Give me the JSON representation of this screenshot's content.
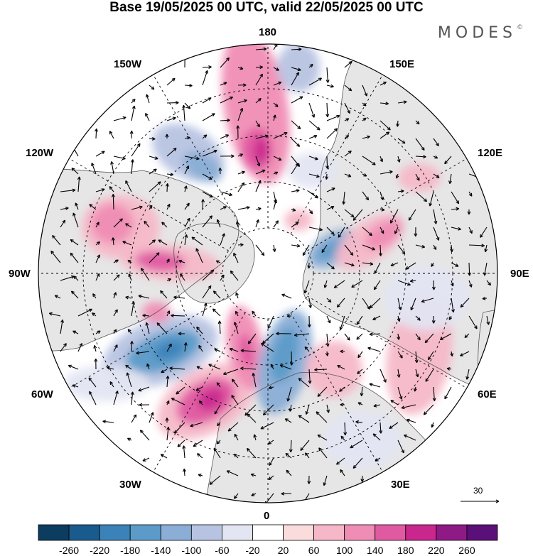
{
  "header": {
    "title": "Base 19/05/2025 00 UTC, valid 22/05/2025 00 UTC",
    "brand": "MODES",
    "brand_mark": "©"
  },
  "map": {
    "projection": "north-polar-stereographic",
    "longitude_labels": {
      "top": "180",
      "upper_left": "150W",
      "upper_right": "150E",
      "mid_upper_left": "120W",
      "mid_upper_right": "120E",
      "left": "90W",
      "right": "90E",
      "mid_lower_left": "60W",
      "mid_lower_right": "60E",
      "lower_left": "30W",
      "lower_right": "30E",
      "bottom": "0"
    },
    "colors": {
      "land_fill": "#e6e6e6",
      "ocean_fill": "#ffffff",
      "coastline": "#555555",
      "graticule": "#000000",
      "vector_color": "#000000"
    },
    "reference_vector": "30"
  },
  "colorbar": {
    "colors": [
      "#0c3c5f",
      "#1a5b8e",
      "#3b82b8",
      "#5c9bc9",
      "#8aaed6",
      "#b7c3e1",
      "#e3e5f2",
      "#ffffff",
      "#fbdcdc",
      "#f6b8c8",
      "#f08db4",
      "#e05aa2",
      "#c9268e",
      "#8e1a86",
      "#5b0f78"
    ],
    "ticks": [
      "-260",
      "-220",
      "-180",
      "-140",
      "-100",
      "-60",
      "-20",
      "20",
      "60",
      "100",
      "140",
      "180",
      "220",
      "260"
    ]
  }
}
